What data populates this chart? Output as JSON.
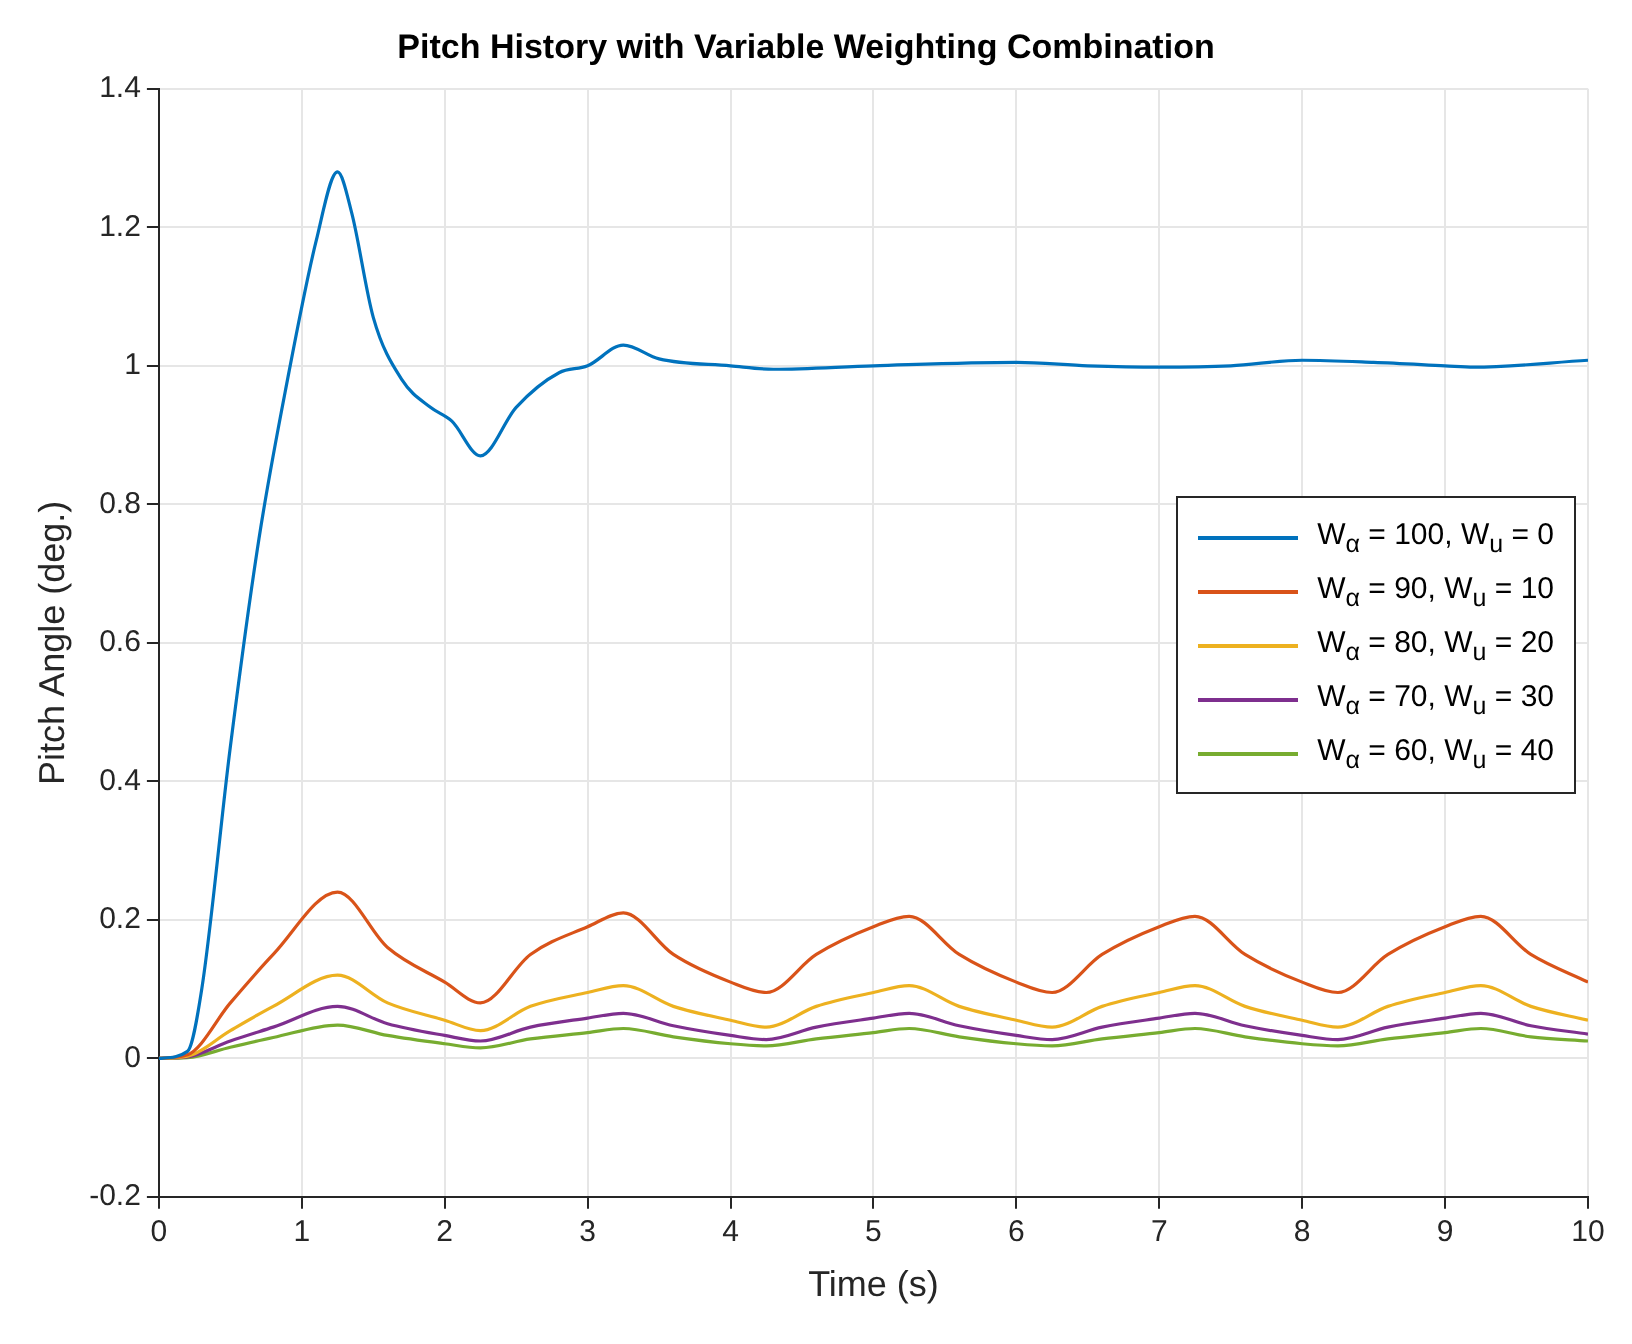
{
  "chart_data": {
    "type": "line",
    "title": "Pitch History with Variable Weighting Combination",
    "xlabel": "Time (s)",
    "ylabel": "Pitch Angle (deg.)",
    "xlim": [
      0,
      10
    ],
    "xticks": [
      0,
      1,
      2,
      3,
      4,
      5,
      6,
      7,
      8,
      9,
      10
    ],
    "ylim": [
      -0.2,
      1.4
    ],
    "yticks": [
      -0.2,
      0,
      0.2,
      0.4,
      0.6,
      0.8,
      1,
      1.2,
      1.4
    ],
    "grid": true,
    "legend": "right",
    "line_style": "solid",
    "marker": "none",
    "series": [
      {
        "name": "W$_{α}$ = 100, W$_{u}$ = 0",
        "color": "#0072bd",
        "x": [
          0,
          0.2,
          0.3,
          0.5,
          0.7,
          0.9,
          1.1,
          1.25,
          1.35,
          1.5,
          1.7,
          1.9,
          2.05,
          2.25,
          2.5,
          2.8,
          3.0,
          3.25,
          3.5,
          4,
          4.3,
          5,
          6,
          6.5,
          7,
          7.5,
          8,
          8.5,
          9,
          9.2,
          10
        ],
        "values": [
          0,
          0.01,
          0.1,
          0.45,
          0.75,
          0.98,
          1.18,
          1.28,
          1.22,
          1.07,
          0.98,
          0.94,
          0.92,
          0.87,
          0.94,
          0.99,
          1.0,
          1.03,
          1.01,
          1.0,
          0.995,
          1.0,
          1.005,
          1.0,
          0.998,
          1.0,
          1.008,
          1.005,
          1.0,
          0.998,
          1.008
        ]
      },
      {
        "name": "W$_{α}$ = 90, W$_{u}$ = 10",
        "color": "#d95319",
        "x": [
          0,
          0.2,
          0.5,
          0.8,
          1.25,
          1.6,
          2.0,
          2.25,
          2.6,
          3.0,
          3.25,
          3.6,
          4.0,
          4.25,
          4.6,
          5.0,
          5.25,
          5.6,
          6.0,
          6.25,
          6.6,
          7.0,
          7.25,
          7.6,
          8.0,
          8.25,
          8.6,
          9.0,
          9.25,
          9.6,
          10
        ],
        "values": [
          0,
          0.005,
          0.08,
          0.15,
          0.24,
          0.16,
          0.11,
          0.08,
          0.15,
          0.19,
          0.21,
          0.15,
          0.11,
          0.095,
          0.15,
          0.19,
          0.205,
          0.15,
          0.11,
          0.095,
          0.15,
          0.19,
          0.205,
          0.15,
          0.11,
          0.095,
          0.15,
          0.19,
          0.205,
          0.15,
          0.11
        ]
      },
      {
        "name": "W$_{α}$ = 80, W$_{u}$ = 20",
        "color": "#edb120",
        "x": [
          0,
          0.2,
          0.5,
          0.8,
          1.25,
          1.6,
          2.0,
          2.25,
          2.6,
          3.0,
          3.25,
          3.6,
          4.0,
          4.25,
          4.6,
          5.0,
          5.25,
          5.6,
          6.0,
          6.25,
          6.6,
          7.0,
          7.25,
          7.6,
          8.0,
          8.25,
          8.6,
          9.0,
          9.25,
          9.6,
          10
        ],
        "values": [
          0,
          0.003,
          0.04,
          0.075,
          0.12,
          0.08,
          0.055,
          0.04,
          0.075,
          0.095,
          0.105,
          0.075,
          0.055,
          0.045,
          0.075,
          0.095,
          0.105,
          0.075,
          0.055,
          0.045,
          0.075,
          0.095,
          0.105,
          0.075,
          0.055,
          0.045,
          0.075,
          0.095,
          0.105,
          0.075,
          0.055
        ]
      },
      {
        "name": "W$_{α}$ = 70, W$_{u}$ = 30",
        "color": "#7e2f8e",
        "x": [
          0,
          0.2,
          0.5,
          0.8,
          1.25,
          1.6,
          2.0,
          2.25,
          2.6,
          3.0,
          3.25,
          3.6,
          4.0,
          4.25,
          4.6,
          5.0,
          5.25,
          5.6,
          6.0,
          6.25,
          6.6,
          7.0,
          7.25,
          7.6,
          8.0,
          8.25,
          8.6,
          9.0,
          9.25,
          9.6,
          10
        ],
        "values": [
          0,
          0.002,
          0.025,
          0.045,
          0.075,
          0.05,
          0.033,
          0.025,
          0.045,
          0.058,
          0.065,
          0.047,
          0.033,
          0.027,
          0.045,
          0.058,
          0.065,
          0.047,
          0.033,
          0.027,
          0.045,
          0.058,
          0.065,
          0.047,
          0.033,
          0.027,
          0.045,
          0.058,
          0.065,
          0.047,
          0.035
        ]
      },
      {
        "name": "W$_{α}$ = 60, W$_{u}$ = 40",
        "color": "#77ac30",
        "x": [
          0,
          0.2,
          0.5,
          0.8,
          1.25,
          1.6,
          2.0,
          2.25,
          2.6,
          3.0,
          3.25,
          3.6,
          4.0,
          4.25,
          4.6,
          5.0,
          5.25,
          5.6,
          6.0,
          6.25,
          6.6,
          7.0,
          7.25,
          7.6,
          8.0,
          8.25,
          8.6,
          9.0,
          9.25,
          9.6,
          10
        ],
        "values": [
          0,
          0.001,
          0.016,
          0.03,
          0.048,
          0.033,
          0.021,
          0.015,
          0.028,
          0.037,
          0.043,
          0.031,
          0.021,
          0.018,
          0.028,
          0.037,
          0.043,
          0.031,
          0.021,
          0.018,
          0.028,
          0.037,
          0.043,
          0.031,
          0.021,
          0.018,
          0.028,
          0.037,
          0.043,
          0.031,
          0.025
        ]
      }
    ]
  }
}
